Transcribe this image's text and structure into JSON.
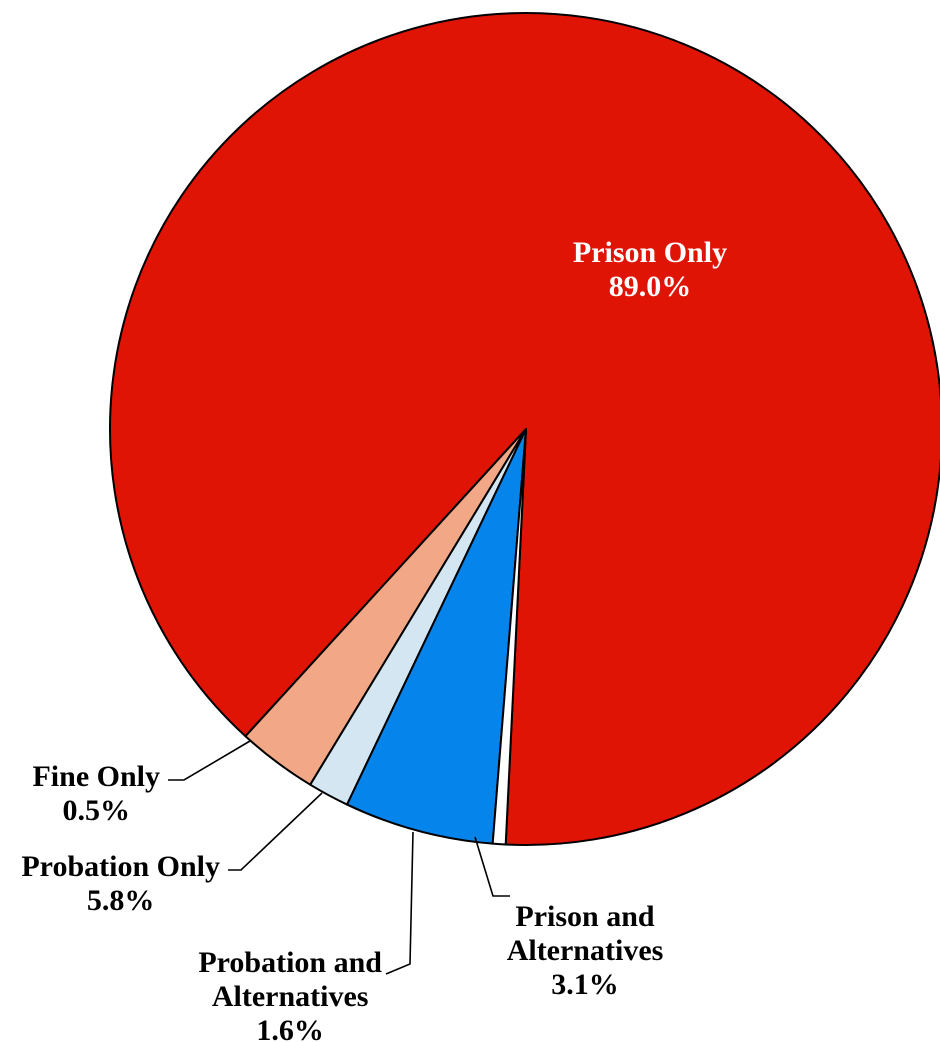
{
  "chart_data": {
    "type": "pie",
    "slices": [
      {
        "label_lines": [
          "Prison Only"
        ],
        "value_label": "89.0%",
        "value": 89.0,
        "color": "#e01405"
      },
      {
        "label_lines": [
          "Prison and",
          "Alternatives"
        ],
        "value_label": "3.1%",
        "value": 3.1,
        "color": "#f2a886"
      },
      {
        "label_lines": [
          "Probation and",
          "Alternatives"
        ],
        "value_label": "1.6%",
        "value": 1.6,
        "color": "#d4e6f2"
      },
      {
        "label_lines": [
          "Probation Only"
        ],
        "value_label": "5.8%",
        "value": 5.8,
        "color": "#0585eb"
      },
      {
        "label_lines": [
          "Fine Only"
        ],
        "value_label": "0.5%",
        "value": 0.5,
        "color": "#ffffff"
      }
    ]
  }
}
